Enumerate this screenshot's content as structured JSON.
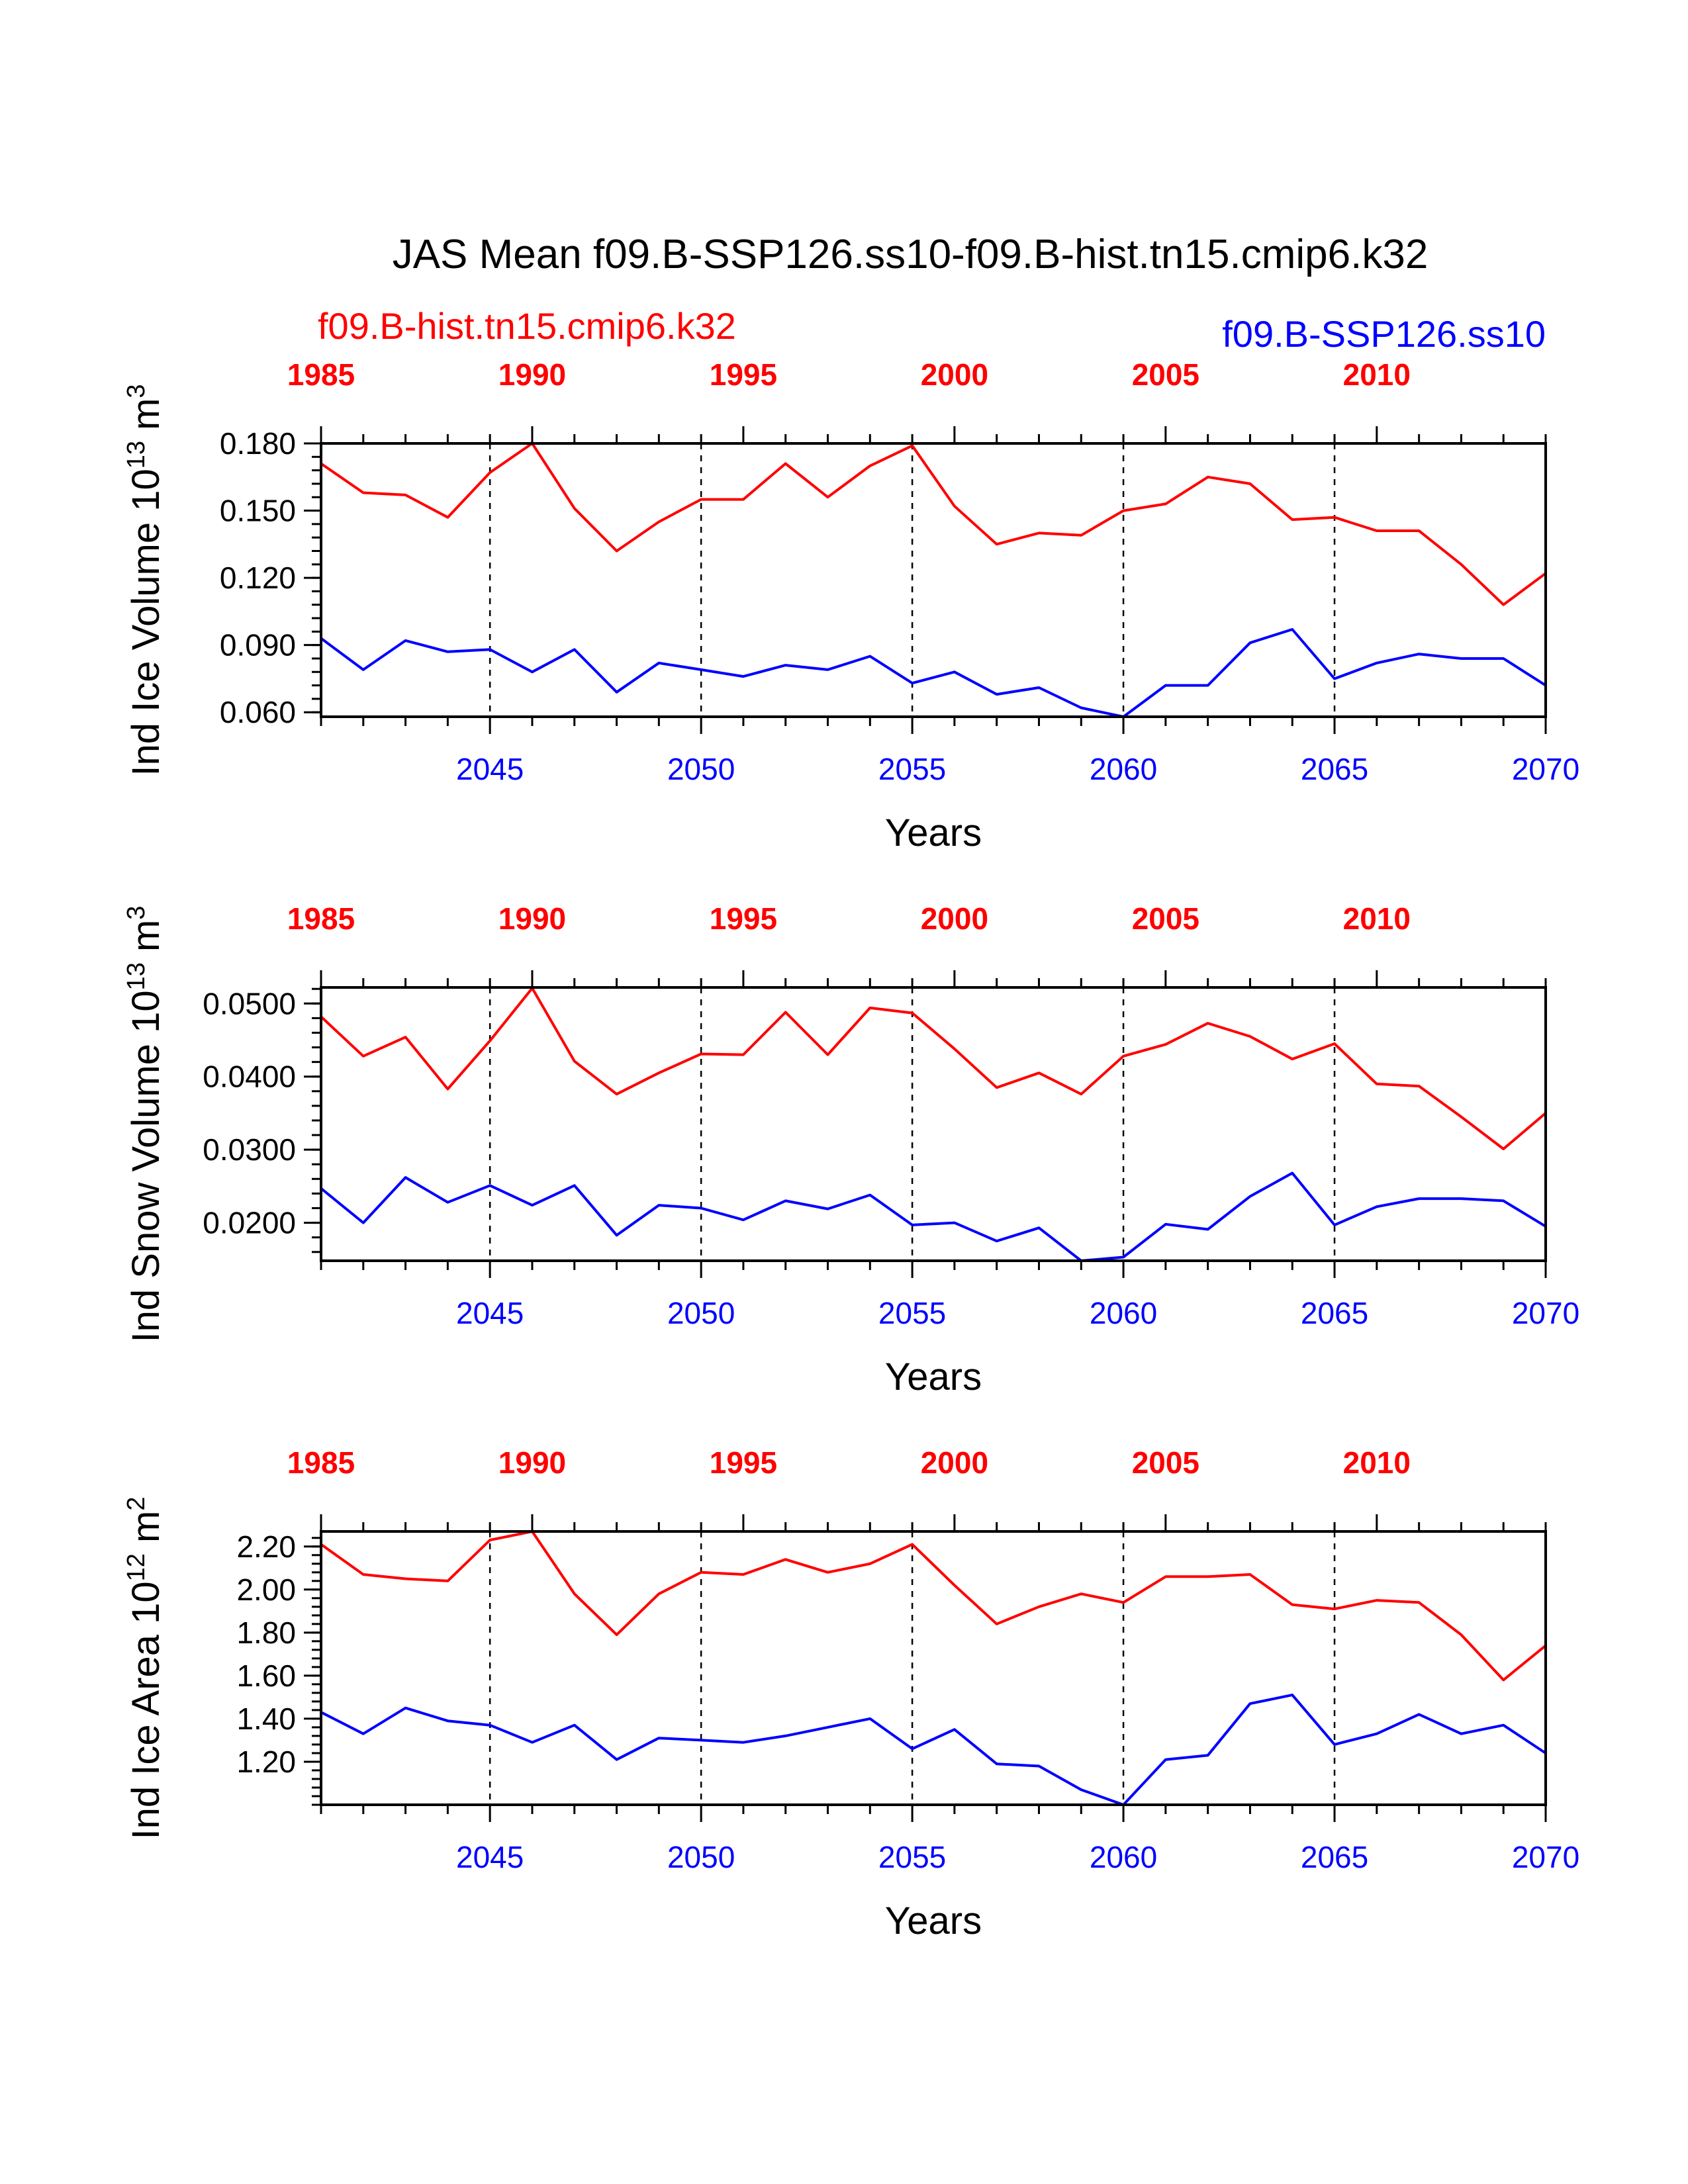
{
  "title": "JAS Mean f09.B-SSP126.ss10-f09.B-hist.tn15.cmip6.k32",
  "legend": {
    "hist_label": "f09.B-hist.tn15.cmip6.k32",
    "ssp_label": "f09.B-SSP126.ss10",
    "hist_color": "#ff0000",
    "ssp_color": "#0000ff"
  },
  "chart_data": [
    {
      "type": "line",
      "ylabel_main": "Ind Ice Volume 10",
      "ylabel_exp": "13",
      "ylabel_unit": " m",
      "ylabel_unit_exp": "3",
      "xlabel": "Years",
      "ylim": [
        0.058,
        0.18
      ],
      "yticks": [
        "0.060",
        "0.090",
        "0.120",
        "0.150",
        "0.180"
      ],
      "yticks_values": [
        0.06,
        0.09,
        0.12,
        0.15,
        0.18
      ],
      "bottom_axis": {
        "range": [
          2041,
          2070
        ],
        "ticks": [
          "2045",
          "2050",
          "2055",
          "2060",
          "2065",
          "2070"
        ]
      },
      "top_axis": {
        "range": [
          1985,
          2014
        ],
        "ticks": [
          "1985",
          "1990",
          "1995",
          "2000",
          "2005",
          "2010"
        ]
      },
      "series": [
        {
          "name": "f09.B-hist.tn15.cmip6.k32",
          "color": "#ff0000",
          "values": [
            0.171,
            0.158,
            0.157,
            0.147,
            0.167,
            0.18,
            0.151,
            0.132,
            0.145,
            0.155,
            0.155,
            0.171,
            0.156,
            0.17,
            0.179,
            0.152,
            0.135,
            0.14,
            0.139,
            0.15,
            0.153,
            0.165,
            0.162,
            0.146,
            0.147,
            0.141,
            0.141,
            0.126,
            0.108,
            0.122
          ]
        },
        {
          "name": "f09.B-SSP126.ss10",
          "color": "#0000ff",
          "values": [
            0.093,
            0.079,
            0.092,
            0.087,
            0.088,
            0.078,
            0.088,
            0.069,
            0.082,
            0.079,
            0.076,
            0.081,
            0.079,
            0.085,
            0.073,
            0.078,
            0.068,
            0.071,
            0.062,
            0.058,
            0.072,
            0.072,
            0.091,
            0.097,
            0.075,
            0.082,
            0.086,
            0.084,
            0.084,
            0.072
          ]
        }
      ]
    },
    {
      "type": "line",
      "ylabel_main": "Ind Snow Volume 10",
      "ylabel_exp": "13",
      "ylabel_unit": " m",
      "ylabel_unit_exp": "3",
      "xlabel": "Years",
      "ylim": [
        0.0148,
        0.0522
      ],
      "yticks": [
        "0.0200",
        "0.0300",
        "0.0400",
        "0.0500"
      ],
      "yticks_values": [
        0.02,
        0.03,
        0.04,
        0.05
      ],
      "bottom_axis": {
        "range": [
          2041,
          2070
        ],
        "ticks": [
          "2045",
          "2050",
          "2055",
          "2060",
          "2065",
          "2070"
        ]
      },
      "top_axis": {
        "range": [
          1985,
          2014
        ],
        "ticks": [
          "1985",
          "1990",
          "1995",
          "2000",
          "2005",
          "2010"
        ]
      },
      "series": [
        {
          "name": "f09.B-hist.tn15.cmip6.k32",
          "color": "#ff0000",
          "values": [
            0.0482,
            0.0428,
            0.0454,
            0.0383,
            0.0449,
            0.0521,
            0.0421,
            0.0376,
            0.0405,
            0.0431,
            0.043,
            0.0488,
            0.043,
            0.0494,
            0.0487,
            0.0438,
            0.0385,
            0.0405,
            0.0376,
            0.0428,
            0.0444,
            0.0473,
            0.0455,
            0.0424,
            0.0445,
            0.039,
            0.0387,
            0.0345,
            0.0301,
            0.035
          ]
        },
        {
          "name": "f09.B-SSP126.ss10",
          "color": "#0000ff",
          "values": [
            0.0247,
            0.02,
            0.0262,
            0.0228,
            0.0251,
            0.0224,
            0.0251,
            0.0183,
            0.0224,
            0.022,
            0.0204,
            0.023,
            0.0219,
            0.0238,
            0.0197,
            0.02,
            0.0175,
            0.0193,
            0.0148,
            0.0153,
            0.0198,
            0.0191,
            0.0236,
            0.0268,
            0.0197,
            0.0222,
            0.0233,
            0.0233,
            0.023,
            0.0195
          ]
        }
      ]
    },
    {
      "type": "line",
      "ylabel_main": "Ind Ice Area 10",
      "ylabel_exp": "12",
      "ylabel_unit": " m",
      "ylabel_unit_exp": "2",
      "xlabel": "Years",
      "ylim": [
        1.0,
        2.27
      ],
      "yticks": [
        "1.20",
        "1.40",
        "1.60",
        "1.80",
        "2.00",
        "2.20"
      ],
      "yticks_values": [
        1.2,
        1.4,
        1.6,
        1.8,
        2.0,
        2.2
      ],
      "bottom_axis": {
        "range": [
          2041,
          2070
        ],
        "ticks": [
          "2045",
          "2050",
          "2055",
          "2060",
          "2065",
          "2070"
        ]
      },
      "top_axis": {
        "range": [
          1985,
          2014
        ],
        "ticks": [
          "1985",
          "1990",
          "1995",
          "2000",
          "2005",
          "2010"
        ]
      },
      "series": [
        {
          "name": "f09.B-hist.tn15.cmip6.k32",
          "color": "#ff0000",
          "values": [
            2.21,
            2.07,
            2.05,
            2.04,
            2.23,
            2.27,
            1.98,
            1.79,
            1.98,
            2.08,
            2.07,
            2.14,
            2.08,
            2.12,
            2.21,
            2.02,
            1.84,
            1.92,
            1.98,
            1.94,
            2.06,
            2.06,
            2.07,
            1.93,
            1.91,
            1.95,
            1.94,
            1.79,
            1.58,
            1.74
          ]
        },
        {
          "name": "f09.B-SSP126.ss10",
          "color": "#0000ff",
          "values": [
            1.43,
            1.33,
            1.45,
            1.39,
            1.37,
            1.29,
            1.37,
            1.21,
            1.31,
            1.3,
            1.29,
            1.32,
            1.36,
            1.4,
            1.26,
            1.35,
            1.19,
            1.18,
            1.07,
            1.0,
            1.21,
            1.23,
            1.47,
            1.51,
            1.28,
            1.33,
            1.42,
            1.33,
            1.37,
            1.24
          ]
        }
      ]
    }
  ]
}
